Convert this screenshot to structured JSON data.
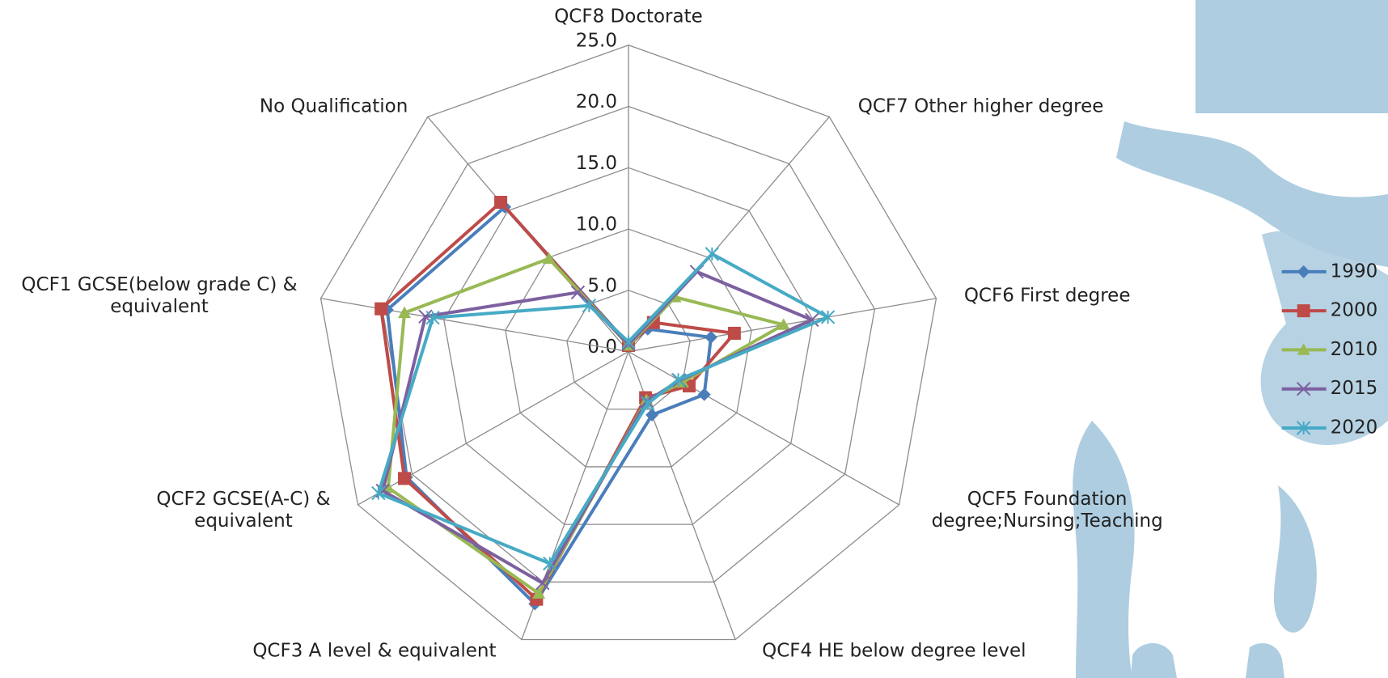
{
  "chart_data": {
    "type": "radar",
    "categories": [
      "QCF8 Doctorate",
      "QCF7 Other higher degree",
      "QCF6 First degree",
      "QCF5 Foundation degree;Nursing;Teaching",
      "QCF4 HE below degree level",
      "QCF3 A level & equivalent",
      "QCF2 GCSE(A-C) & equivalent",
      "QCF1 GCSE(below grade C) & equivalent",
      "No Qualification"
    ],
    "ylim": [
      0,
      25
    ],
    "yticks": [
      {
        "value": 0,
        "label": "0.0"
      },
      {
        "value": 5,
        "label": "5.0"
      },
      {
        "value": 10,
        "label": "10.0"
      },
      {
        "value": 15,
        "label": "15.0"
      },
      {
        "value": 20,
        "label": "20.0"
      },
      {
        "value": 25,
        "label": "25.0"
      }
    ],
    "grid": true,
    "legend": "right",
    "series": [
      {
        "name": "1990",
        "color": "#4a7ebb",
        "marker": "diamond",
        "values": [
          0.6,
          2.4,
          6.7,
          7.0,
          5.5,
          21.9,
          20.5,
          19.6,
          15.4
        ]
      },
      {
        "name": "2000",
        "color": "#be4b48",
        "marker": "square",
        "values": [
          0.5,
          3.1,
          8.6,
          5.6,
          4.0,
          21.5,
          20.7,
          20.1,
          15.9
        ]
      },
      {
        "name": "2010",
        "color": "#98b954",
        "marker": "triangle",
        "values": [
          0.5,
          5.8,
          12.6,
          5.0,
          4.2,
          21.0,
          22.2,
          18.2,
          9.9
        ]
      },
      {
        "name": "2015",
        "color": "#7d60a0",
        "marker": "x",
        "values": [
          0.6,
          8.5,
          14.9,
          4.7,
          4.3,
          20.1,
          22.7,
          16.5,
          6.3
        ]
      },
      {
        "name": "2020",
        "color": "#46aac5",
        "marker": "star",
        "values": [
          0.8,
          10.4,
          16.2,
          4.6,
          4.5,
          18.4,
          23.1,
          15.9,
          4.9
        ]
      }
    ]
  }
}
